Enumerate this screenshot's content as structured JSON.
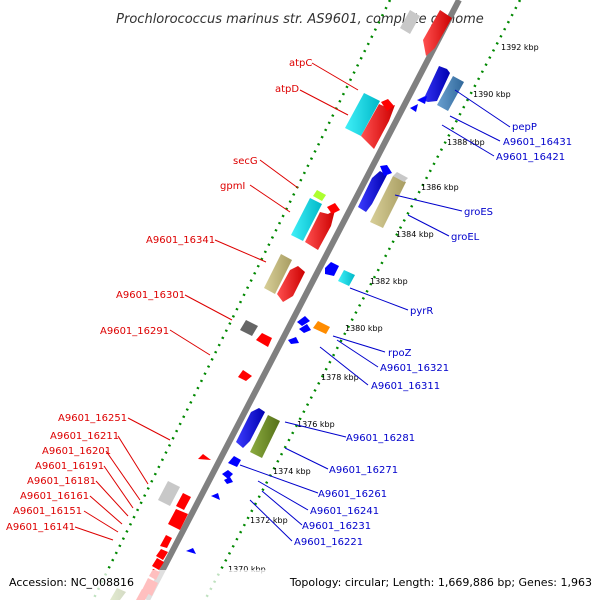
{
  "title": "Prochlorococcus marinus str. AS9601, complete genome",
  "footer": {
    "accession": "Accession: NC_008816",
    "topology": "Topology: circular; Length: 1,669,886 bp; Genes: 1,963"
  },
  "ticks": [
    "1392 kbp",
    "1390 kbp",
    "1388 kbp",
    "1386 kbp",
    "1384 kbp",
    "1382 kbp",
    "1380 kbp",
    "1378 kbp",
    "1376 kbp",
    "1374 kbp",
    "1372 kbp",
    "1370 kbp"
  ],
  "labels_left": [
    "atpC",
    "atpD",
    "secG",
    "gpmI",
    "A9601_16341",
    "A9601_16301",
    "A9601_16291",
    "A9601_16251",
    "A9601_16211",
    "A9601_16201",
    "A9601_16191",
    "A9601_16181",
    "A9601_16161",
    "A9601_16151",
    "A9601_16141"
  ],
  "labels_right": [
    "pepP",
    "A9601_16431",
    "A9601_16421",
    "groES",
    "groEL",
    "pyrR",
    "rpoZ",
    "A9601_16321",
    "A9601_16311",
    "A9601_16281",
    "A9601_16271",
    "A9601_16261",
    "A9601_16241",
    "A9601_16231",
    "A9601_16221"
  ],
  "colors": {
    "backbone": "#808080",
    "forward_gene": "#ff0000",
    "reverse_gene": "#0000ff",
    "rna": "#00e5ee",
    "khaki": "#c5b97a",
    "olive": "#6b8e23",
    "steel": "#4682b4",
    "dark_gray": "#666666",
    "light_gray": "#c8c8c8",
    "orange": "#ff8c00",
    "light_green": "#adff2f",
    "label_red": "#dd0000",
    "label_blue": "#0000cc",
    "dotted_ring": "#008800"
  }
}
